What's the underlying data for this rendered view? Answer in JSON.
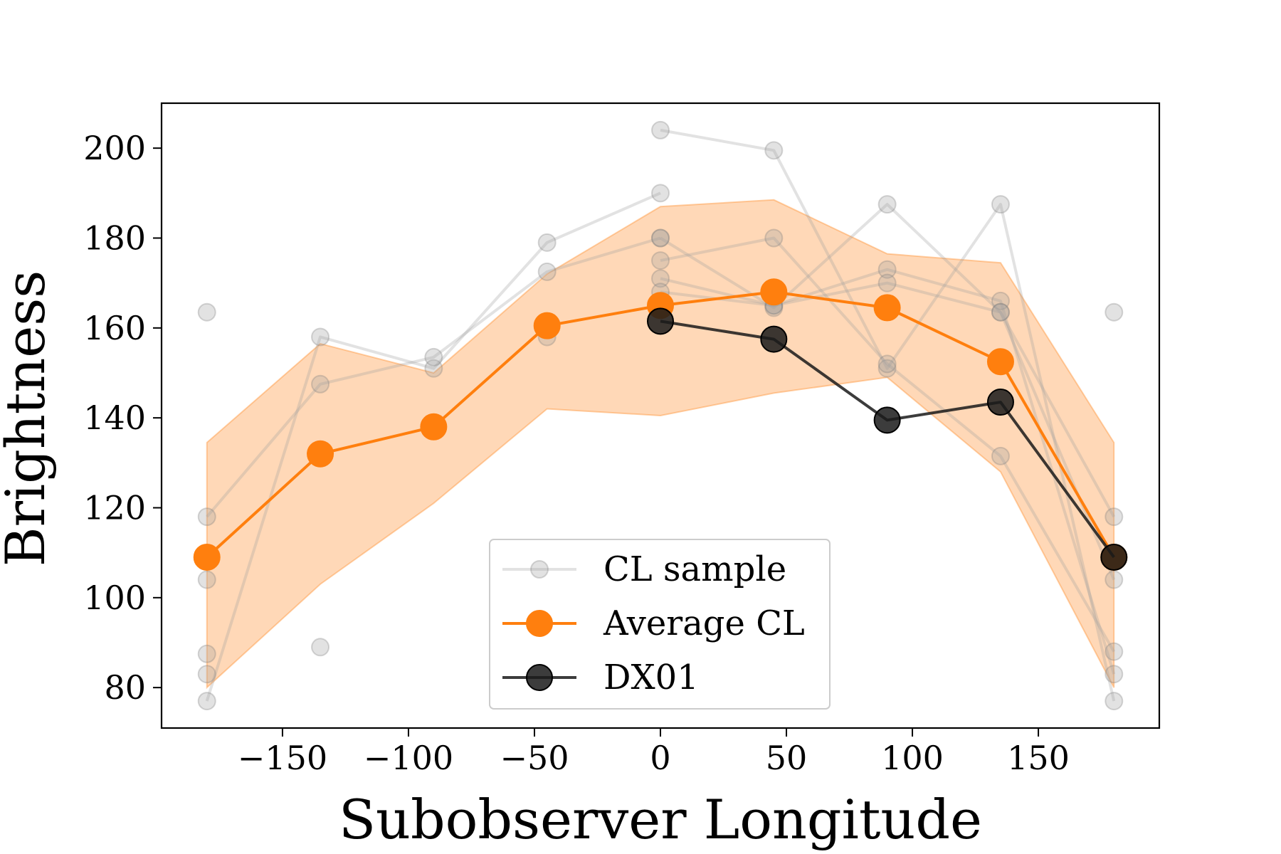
{
  "chart_data": {
    "type": "line",
    "xlabel": "Subobserver Longitude",
    "ylabel": "Brightness",
    "xlim": [
      -198,
      198
    ],
    "ylim": [
      71,
      210
    ],
    "xticks": [
      -150,
      -100,
      -50,
      0,
      50,
      100,
      150
    ],
    "xtick_labels": [
      "−150",
      "−100",
      "−50",
      "0",
      "50",
      "100",
      "150"
    ],
    "yticks": [
      80,
      100,
      120,
      140,
      160,
      180,
      200
    ],
    "ytick_labels": [
      "80",
      "100",
      "120",
      "140",
      "160",
      "180",
      "200"
    ],
    "legend_position": "lower-center",
    "colors": {
      "sample": "#a0a0a0",
      "average": "#ff7f0e",
      "band": "#ffc08a",
      "dx01": "#1a1a1a"
    },
    "x": [
      -180,
      -135,
      -90,
      -45,
      0,
      45,
      90,
      135,
      180
    ],
    "samples": [
      {
        "x": [
          -180,
          -135,
          -90,
          -45,
          0
        ],
        "y": [
          77,
          158,
          151,
          179,
          190
        ]
      },
      {
        "x": [
          -180,
          -135,
          -90,
          -45,
          0
        ],
        "y": [
          118,
          147.5,
          153.5,
          172.5,
          180
        ]
      },
      {
        "x": [
          0,
          45,
          90,
          135,
          180
        ],
        "y": [
          204,
          199.5,
          151,
          187.5,
          77
        ]
      },
      {
        "x": [
          0,
          45,
          90,
          135,
          180
        ],
        "y": [
          175,
          180,
          152,
          131.5,
          88
        ]
      },
      {
        "x": [
          0,
          45,
          90,
          135,
          180
        ],
        "y": [
          171,
          165,
          173,
          166,
          83
        ]
      },
      {
        "x": [
          0,
          45,
          90,
          135,
          180
        ],
        "y": [
          168,
          165,
          170,
          163.5,
          104
        ]
      },
      {
        "x": [
          0,
          45,
          90,
          135,
          180
        ],
        "y": [
          180,
          164.5,
          187.5,
          163.5,
          118
        ]
      }
    ],
    "extra_sample_points": [
      {
        "x": -180,
        "y": 163.5
      },
      {
        "x": -180,
        "y": 104
      },
      {
        "x": -180,
        "y": 87.5
      },
      {
        "x": -180,
        "y": 83
      },
      {
        "x": -135,
        "y": 89
      },
      {
        "x": -45,
        "y": 158
      },
      {
        "x": 180,
        "y": 163.5
      }
    ],
    "series": [
      {
        "name": "Average CL",
        "x": [
          -180,
          -135,
          -90,
          -45,
          0,
          45,
          90,
          135,
          180
        ],
        "values": [
          109,
          132,
          138,
          160.5,
          165,
          168,
          164.5,
          152.5,
          109
        ]
      },
      {
        "name": "DX01",
        "x": [
          0,
          45,
          90,
          135,
          180
        ],
        "values": [
          161.5,
          157.5,
          139.5,
          143.5,
          109
        ]
      }
    ],
    "band": {
      "x": [
        -180,
        -135,
        -90,
        -45,
        0,
        45,
        90,
        135,
        180
      ],
      "upper": [
        134.5,
        156.5,
        150,
        172,
        187,
        188.5,
        176.5,
        174.5,
        134.5
      ],
      "lower": [
        80,
        103,
        121,
        142,
        140.5,
        145.5,
        149,
        128,
        80
      ]
    },
    "legend": [
      "CL sample",
      "Average CL",
      "DX01"
    ]
  }
}
